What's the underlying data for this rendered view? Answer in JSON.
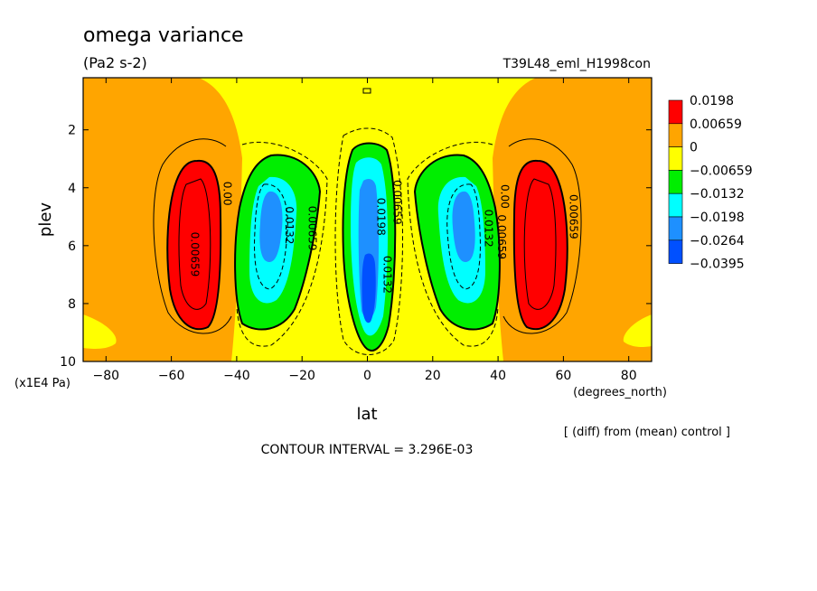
{
  "chart_data": {
    "type": "heatmap",
    "title": "omega variance",
    "units": "(Pa2 s-2)",
    "experiment": "T39L48_eml_H1998con",
    "xlabel": "lat",
    "x_units": "(degrees_north)",
    "ylabel": "plev",
    "y_units": "(x1E4 Pa)",
    "xlim": [
      -87,
      87
    ],
    "ylim": [
      10,
      0.2
    ],
    "x_ticks": [
      -80,
      -60,
      -40,
      -20,
      0,
      20,
      40,
      60,
      80
    ],
    "x_tick_labels": [
      "−80",
      "−60",
      "−40",
      "−20",
      "0",
      "20",
      "40",
      "60",
      "80"
    ],
    "y_ticks": [
      2,
      4,
      6,
      8,
      10
    ],
    "y_tick_labels": [
      "2",
      "4",
      "6",
      "8",
      "10"
    ],
    "legend": {
      "placement": "right",
      "levels": [
        {
          "label": "0.0198",
          "color": "#ff0000"
        },
        {
          "label": "0.00659",
          "color": "#ffa500"
        },
        {
          "label": "0",
          "color": "#ffff00"
        },
        {
          "label": "−0.00659",
          "color": "#00ee00"
        },
        {
          "label": "−0.0132",
          "color": "#00ffff"
        },
        {
          "label": "−0.0198",
          "color": "#1e90ff"
        },
        {
          "label": "−0.0264",
          "color": "#0050ff"
        },
        {
          "label": "−0.0395",
          "color": ""
        }
      ]
    },
    "contour_labels": [
      {
        "text": "0.00659",
        "lat": -54,
        "plev": 6.3
      },
      {
        "text": "0.00",
        "lat": -44,
        "plev": 4.2
      },
      {
        "text": "0.0132",
        "lat": -25,
        "plev": 5.3
      },
      {
        "text": "0.00659",
        "lat": -18,
        "plev": 5.4
      },
      {
        "text": "0.0198",
        "lat": 3,
        "plev": 5.0
      },
      {
        "text": "0.00659",
        "lat": 8,
        "plev": 4.5
      },
      {
        "text": "0.0132",
        "lat": 5,
        "plev": 7.0
      },
      {
        "text": "0.00",
        "lat": 41,
        "plev": 4.3
      },
      {
        "text": "0.0132",
        "lat": 36,
        "plev": 5.4
      },
      {
        "text": "0.00659",
        "lat": 40,
        "plev": 5.7
      },
      {
        "text": "0.00659",
        "lat": 62,
        "plev": 5.0
      }
    ],
    "features": [
      {
        "lat": -54,
        "plev": 5.8,
        "value": 0.0198,
        "extent_lat": 9,
        "extent_plev": 2.6
      },
      {
        "lat": 54,
        "plev": 5.8,
        "value": 0.0198,
        "extent_lat": 9,
        "extent_plev": 2.6
      },
      {
        "lat": -30,
        "plev": 5.3,
        "value": -0.0198,
        "extent_lat": 8,
        "extent_plev": 2.4
      },
      {
        "lat": 30,
        "plev": 5.3,
        "value": -0.0198,
        "extent_lat": 8,
        "extent_plev": 2.4
      },
      {
        "lat": 0,
        "plev": 5.5,
        "value": -0.0264,
        "extent_lat": 5,
        "extent_plev": 3.5
      },
      {
        "lat": 0,
        "plev": 8.0,
        "value": -0.0395,
        "extent_lat": 3,
        "extent_plev": 1.5
      }
    ],
    "grid": false
  },
  "annotations": {
    "diff_note": "[ (diff) from (mean) control ]",
    "contour_interval": "CONTOUR INTERVAL = 3.296E-03"
  }
}
